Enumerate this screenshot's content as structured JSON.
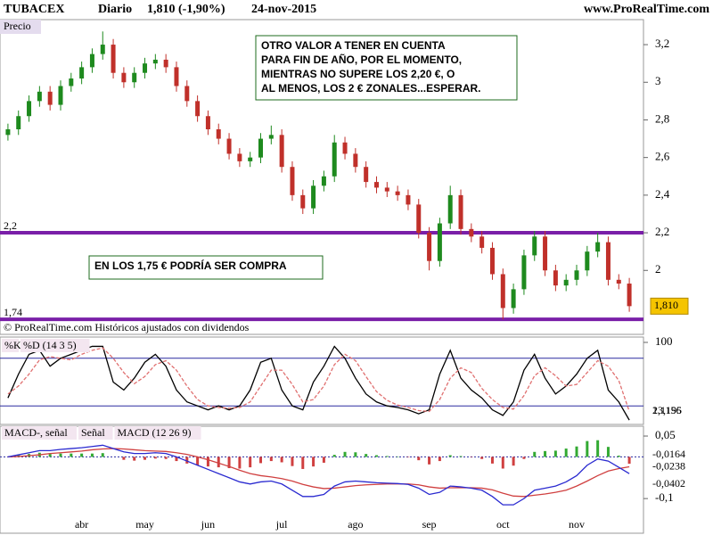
{
  "header": {
    "symbol": "TUBACEX",
    "period": "Diario",
    "quote": "1,810 (-1,90%)",
    "date": "24-nov-2015",
    "site": "www.ProRealTime.com",
    "footer": "© ProRealTime.com  Históricos ajustados con dividendos"
  },
  "chart_data": [
    {
      "type": "candlestick",
      "title": "Precio",
      "categories": [
        null,
        null,
        null,
        null,
        null,
        null,
        null,
        "abr",
        null,
        null,
        null,
        null,
        null,
        "may",
        null,
        null,
        null,
        null,
        null,
        "jun",
        null,
        null,
        null,
        null,
        null,
        null,
        "jul",
        null,
        null,
        null,
        null,
        null,
        null,
        "ago",
        null,
        null,
        null,
        null,
        null,
        null,
        "sep",
        null,
        null,
        null,
        null,
        null,
        null,
        "oct",
        null,
        null,
        null,
        null,
        null,
        null,
        "nov",
        null,
        null,
        null,
        null,
        null
      ],
      "open": [
        2.72,
        2.75,
        2.82,
        2.9,
        2.95,
        2.88,
        2.98,
        3.02,
        3.08,
        3.15,
        3.2,
        3.05,
        3.0,
        3.05,
        3.1,
        3.12,
        3.08,
        2.98,
        2.9,
        2.82,
        2.75,
        2.7,
        2.62,
        2.58,
        2.6,
        2.7,
        2.72,
        2.55,
        2.4,
        2.33,
        2.45,
        2.5,
        2.68,
        2.62,
        2.55,
        2.47,
        2.44,
        2.42,
        2.4,
        2.35,
        2.2,
        2.05,
        2.25,
        2.4,
        2.22,
        2.18,
        2.12,
        1.98,
        1.8,
        1.9,
        2.08,
        2.18,
        2.0,
        1.92,
        1.95,
        2.0,
        2.1,
        2.15,
        1.95,
        1.93
      ],
      "high": [
        2.78,
        2.85,
        2.93,
        2.98,
        2.98,
        3.01,
        3.05,
        3.11,
        3.18,
        3.27,
        3.23,
        3.08,
        3.08,
        3.13,
        3.15,
        3.15,
        3.11,
        3.01,
        2.93,
        2.85,
        2.78,
        2.73,
        2.65,
        2.63,
        2.73,
        2.77,
        2.75,
        2.58,
        2.43,
        2.48,
        2.53,
        2.72,
        2.71,
        2.65,
        2.58,
        2.5,
        2.47,
        2.45,
        2.43,
        2.38,
        2.23,
        2.28,
        2.45,
        2.43,
        2.25,
        2.21,
        2.15,
        2.01,
        1.93,
        2.11,
        2.21,
        2.21,
        2.03,
        1.98,
        2.03,
        2.13,
        2.2,
        2.18,
        1.98,
        1.96
      ],
      "low": [
        2.69,
        2.72,
        2.79,
        2.87,
        2.85,
        2.85,
        2.95,
        2.99,
        3.05,
        3.12,
        3.02,
        2.97,
        2.97,
        3.02,
        3.07,
        3.05,
        2.95,
        2.87,
        2.79,
        2.72,
        2.67,
        2.59,
        2.55,
        2.55,
        2.57,
        2.67,
        2.52,
        2.37,
        2.3,
        2.3,
        2.42,
        2.47,
        2.59,
        2.52,
        2.44,
        2.41,
        2.39,
        2.37,
        2.32,
        2.17,
        2.0,
        2.02,
        2.22,
        2.19,
        2.15,
        2.09,
        1.95,
        1.74,
        1.77,
        1.87,
        2.05,
        1.97,
        1.89,
        1.89,
        1.92,
        1.97,
        2.07,
        1.92,
        1.9,
        1.78
      ],
      "close": [
        2.75,
        2.82,
        2.9,
        2.95,
        2.88,
        2.98,
        3.02,
        3.08,
        3.15,
        3.2,
        3.05,
        3.0,
        3.05,
        3.1,
        3.12,
        3.08,
        2.98,
        2.9,
        2.82,
        2.75,
        2.7,
        2.62,
        2.58,
        2.6,
        2.7,
        2.72,
        2.55,
        2.4,
        2.33,
        2.45,
        2.5,
        2.68,
        2.62,
        2.55,
        2.47,
        2.44,
        2.42,
        2.4,
        2.35,
        2.2,
        2.05,
        2.25,
        2.4,
        2.22,
        2.18,
        2.12,
        1.98,
        1.8,
        1.9,
        2.08,
        2.18,
        2.0,
        1.92,
        1.95,
        2.0,
        2.1,
        2.15,
        1.95,
        1.93,
        1.81
      ],
      "up_color": "#1e8a1e",
      "down_color": "#c0302a",
      "last_label": {
        "value": 1.81,
        "label": "1,810"
      },
      "ylim": [
        1.66,
        3.333
      ],
      "yticks": [
        {
          "value": 3.2,
          "label": "3,2"
        },
        3,
        {
          "value": 2.8,
          "label": "2,8"
        },
        {
          "value": 2.6,
          "label": "2,6"
        },
        {
          "value": 2.4,
          "label": "2,4"
        },
        {
          "value": 2.2,
          "label": "2,2"
        },
        2
      ],
      "hlines": [
        {
          "value": 2.2,
          "label": "2,2"
        },
        {
          "value": 1.74,
          "label": "1,74"
        }
      ],
      "hline_color": "#7a1fa8",
      "annotations": [
        {
          "lines": [
            "OTRO VALOR A TENER EN CUENTA",
            "PARA FIN DE AÑO, POR EL MOMENTO,",
            "MIENTRAS NO SUPERE LOS 2,20 €, O",
            "AL MENOS, LOS 2 € ZONALES...ESPERAR."
          ]
        },
        {
          "lines": [
            "EN LOS 1,75 € PODRÍA SER COMPRA"
          ]
        }
      ]
    },
    {
      "type": "line",
      "series": [
        {
          "name": "%K",
          "color": "#000000",
          "values": [
            30,
            60,
            85,
            90,
            70,
            80,
            85,
            90,
            95,
            95,
            50,
            40,
            55,
            75,
            85,
            70,
            40,
            25,
            20,
            15,
            20,
            15,
            20,
            40,
            75,
            80,
            40,
            20,
            15,
            50,
            70,
            95,
            80,
            55,
            35,
            25,
            20,
            18,
            15,
            10,
            15,
            60,
            90,
            55,
            40,
            30,
            15,
            8,
            25,
            65,
            85,
            55,
            35,
            45,
            60,
            80,
            90,
            40,
            25,
            2.1156
          ],
          "last_label": "2,1156"
        },
        {
          "name": "%D (14 3 5)",
          "color": "#e07070",
          "dash": true,
          "values": [
            35,
            45,
            60,
            78,
            82,
            80,
            78,
            85,
            90,
            93,
            80,
            62,
            48,
            57,
            72,
            77,
            65,
            45,
            28,
            20,
            18,
            17,
            18,
            25,
            45,
            65,
            65,
            47,
            25,
            28,
            45,
            72,
            85,
            77,
            57,
            38,
            27,
            21,
            18,
            14,
            13,
            28,
            55,
            68,
            62,
            42,
            28,
            18,
            16,
            33,
            58,
            68,
            58,
            45,
            47,
            62,
            77,
            70,
            52,
            13.195
          ],
          "last_label": "13,195"
        }
      ],
      "ylim": [
        0,
        100
      ],
      "yticks": [
        100
      ],
      "hlines": [
        80,
        20
      ],
      "hline_color": "#2a2aa0"
    },
    {
      "type": "line",
      "series": [
        {
          "name": "MACD-, señal",
          "kind": "histogram",
          "pos_color": "#33aa33",
          "neg_color": "#d04040",
          "color": "#d04040",
          "values": [
            0,
            0.004,
            0.007,
            0.01,
            0.007,
            0.008,
            0.008,
            0.008,
            0.008,
            0.009,
            0,
            -0.007,
            -0.009,
            -0.007,
            -0.004,
            -0.005,
            -0.01,
            -0.016,
            -0.02,
            -0.023,
            -0.025,
            -0.027,
            -0.028,
            -0.025,
            -0.015,
            -0.01,
            -0.013,
            -0.022,
            -0.029,
            -0.023,
            -0.014,
            0.005,
            0.012,
            0.011,
            0.007,
            0.004,
            0.002,
            0.001,
            -0.001,
            -0.008,
            -0.018,
            -0.01,
            0.004,
            0.002,
            -0.001,
            -0.005,
            -0.016,
            -0.028,
            -0.021,
            -0.005,
            0.012,
            0.014,
            0.015,
            0.02,
            0.025,
            0.038,
            0.04,
            0.024,
            0.003,
            -0.0164
          ],
          "last_label": "-0,0164"
        },
        {
          "name": "Señal",
          "color": "#d04040",
          "values": [
            0,
            0.001,
            0.003,
            0.005,
            0.008,
            0.01,
            0.012,
            0.014,
            0.017,
            0.019,
            0.02,
            0.019,
            0.017,
            0.015,
            0.014,
            0.013,
            0.01,
            0.006,
            0,
            -0.007,
            -0.015,
            -0.023,
            -0.032,
            -0.04,
            -0.045,
            -0.048,
            -0.052,
            -0.058,
            -0.066,
            -0.072,
            -0.076,
            -0.075,
            -0.072,
            -0.069,
            -0.067,
            -0.066,
            -0.065,
            -0.065,
            -0.065,
            -0.067,
            -0.072,
            -0.075,
            -0.074,
            -0.074,
            -0.074,
            -0.075,
            -0.079,
            -0.087,
            -0.094,
            -0.095,
            -0.092,
            -0.089,
            -0.085,
            -0.08,
            -0.07,
            -0.058,
            -0.045,
            -0.034,
            -0.028,
            -0.0238
          ],
          "last_label": "-0,0238"
        },
        {
          "name": "MACD (12 26 9)",
          "color": "#2a2ad0",
          "values": [
            0,
            0.005,
            0.01,
            0.015,
            0.015,
            0.018,
            0.02,
            0.022,
            0.025,
            0.028,
            0.02,
            0.012,
            0.008,
            0.008,
            0.01,
            0.008,
            0,
            -0.01,
            -0.02,
            -0.03,
            -0.04,
            -0.05,
            -0.06,
            -0.065,
            -0.06,
            -0.058,
            -0.065,
            -0.08,
            -0.095,
            -0.095,
            -0.09,
            -0.07,
            -0.06,
            -0.058,
            -0.06,
            -0.062,
            -0.063,
            -0.064,
            -0.066,
            -0.075,
            -0.09,
            -0.085,
            -0.07,
            -0.072,
            -0.075,
            -0.08,
            -0.095,
            -0.115,
            -0.115,
            -0.1,
            -0.08,
            -0.075,
            -0.07,
            -0.06,
            -0.045,
            -0.02,
            -0.005,
            -0.01,
            -0.025,
            -0.0402
          ],
          "last_label": "-0,0402"
        }
      ],
      "ylim": [
        -0.181,
        0.0736
      ],
      "yticks": [
        {
          "value": 0.05,
          "label": "0,05"
        },
        {
          "value": -0.1,
          "label": "-0,1"
        }
      ],
      "zero_line": true
    }
  ]
}
